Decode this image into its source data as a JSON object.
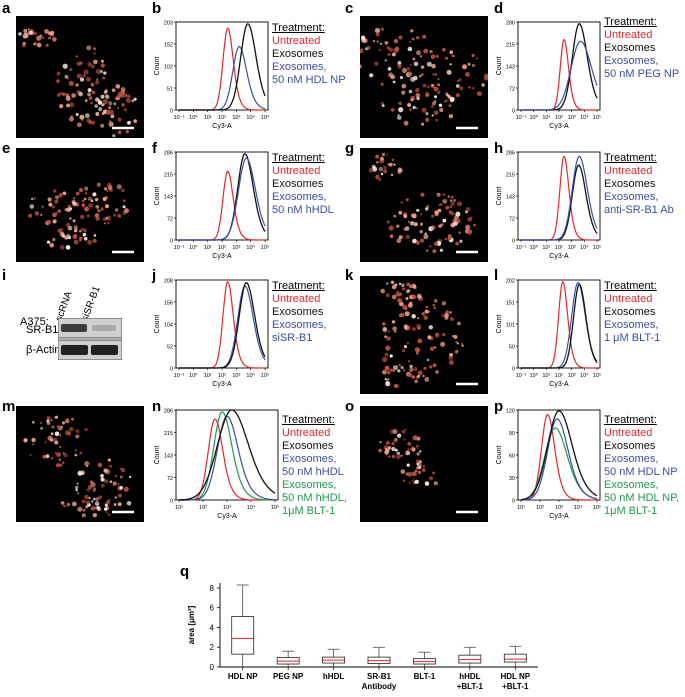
{
  "colors": {
    "red": "#e8262b",
    "black": "#111111",
    "blue": "#3b4fa0",
    "green": "#1f9a4c"
  },
  "panel_letters": [
    "a",
    "b",
    "c",
    "d",
    "e",
    "f",
    "g",
    "h",
    "i",
    "j",
    "k",
    "l",
    "m",
    "n",
    "o",
    "p",
    "q"
  ],
  "legend_header": "Treatment:",
  "flow_panels": {
    "b": {
      "yticks": [
        "203",
        "152",
        "102",
        "51",
        "0"
      ],
      "legend": [
        [
          "Untreated",
          "red"
        ],
        [
          "Exosomes",
          "black"
        ],
        [
          "Exosomes,",
          "blue"
        ],
        [
          "50 nM HDL NP",
          "blue"
        ]
      ],
      "xticks": [
        "10⁻¹",
        "10⁰",
        "10¹",
        "10²",
        "10³",
        "10⁴",
        "10⁵"
      ]
    },
    "d": {
      "yticks": [
        "286",
        "215",
        "143",
        "72",
        "0"
      ],
      "legend": [
        [
          "Untreated",
          "red"
        ],
        [
          "Exosomes",
          "black"
        ],
        [
          "Exosomes,",
          "blue"
        ],
        [
          "50 nM PEG NP",
          "blue"
        ]
      ],
      "xticks": [
        "10⁻¹",
        "10⁰",
        "10¹",
        "10²",
        "10³",
        "10⁴",
        "10⁵"
      ]
    },
    "f": {
      "yticks": [
        "286",
        "215",
        "143",
        "72",
        "0"
      ],
      "legend": [
        [
          "Untreated",
          "red"
        ],
        [
          "Exosomes",
          "black"
        ],
        [
          "Exosomes,",
          "blue"
        ],
        [
          "50 nM hHDL",
          "blue"
        ]
      ],
      "xticks": [
        "10⁻¹",
        "10⁰",
        "10¹",
        "10²",
        "10³",
        "10⁴",
        "10⁵"
      ]
    },
    "h": {
      "yticks": [
        "286",
        "215",
        "143",
        "72",
        "0"
      ],
      "legend": [
        [
          "Untreated",
          "red"
        ],
        [
          "Exosomes",
          "black"
        ],
        [
          "Exosomes,",
          "blue"
        ],
        [
          "anti-SR-B1 Ab",
          "blue"
        ]
      ],
      "xticks": [
        "10⁻¹",
        "10⁰",
        "10¹",
        "10²",
        "10³",
        "10⁴",
        "10⁵"
      ]
    },
    "j": {
      "yticks": [
        "208",
        "156",
        "104",
        "52",
        "0"
      ],
      "legend": [
        [
          "Untreated",
          "red"
        ],
        [
          "Exosomes",
          "black"
        ],
        [
          "Exosomes,",
          "blue"
        ],
        [
          "siSR-B1",
          "blue"
        ]
      ],
      "xticks": [
        "10⁻¹",
        "10⁰",
        "10¹",
        "10²",
        "10³",
        "10⁴",
        "10⁵"
      ]
    },
    "l": {
      "yticks": [
        "202",
        "151",
        "101",
        "50",
        "0"
      ],
      "legend": [
        [
          "Untreated",
          "red"
        ],
        [
          "Exosomes",
          "black"
        ],
        [
          "Exosomes,",
          "blue"
        ],
        [
          "1 μM BLT-1",
          "blue"
        ]
      ],
      "xticks": [
        "10⁻¹",
        "10⁰",
        "10¹",
        "10²",
        "10³",
        "10⁴",
        "10⁵"
      ]
    },
    "n": {
      "yticks": [
        "286",
        "215",
        "143",
        "72",
        "0"
      ],
      "legend": [
        [
          "Untreated",
          "red"
        ],
        [
          "Exosomes",
          "black"
        ],
        [
          "Exosomes,",
          "blue"
        ],
        [
          "50 nM hHDL",
          "blue"
        ],
        [
          "Exosomes,",
          "green"
        ],
        [
          "50 nM hHDL,",
          "green"
        ],
        [
          "1μM BLT-1",
          "green"
        ]
      ],
      "xticks": [
        "10¹",
        "10²",
        "10³",
        "10⁴",
        "10⁵"
      ]
    },
    "p": {
      "yticks": [
        "120",
        "90",
        "60",
        "30",
        "0"
      ],
      "legend": [
        [
          "Untreated",
          "red"
        ],
        [
          "Exosomes",
          "black"
        ],
        [
          "Exosomes,",
          "blue"
        ],
        [
          "50 nM HDL NP",
          "blue"
        ],
        [
          "Exosomes,",
          "green"
        ],
        [
          "50 nM HDL NP,",
          "green"
        ],
        [
          "1μM BLT-1",
          "green"
        ]
      ],
      "xticks": [
        "10¹",
        "10²",
        "10³",
        "10⁴",
        "10⁵"
      ]
    }
  },
  "axis_labels": {
    "flow_x": "Cy3-A",
    "flow_y": "Count"
  },
  "western_blot": {
    "cell_line": "A375:",
    "lanes": [
      "scRNA",
      "siSR-B1"
    ],
    "rows": [
      "SR-B1",
      "β-Actin"
    ]
  },
  "chart_data": {
    "type": "box",
    "title": "",
    "xlabel": "",
    "ylabel": "area [μm²]",
    "ylim": [
      0,
      8.5
    ],
    "yticks": [
      0,
      2,
      4,
      6,
      8
    ],
    "categories": [
      "HDL NP",
      "PEG NP",
      "hHDL",
      "SR-B1 Antibody",
      "BLT-1",
      "hHDL +BLT-1",
      "HDL NP +BLT-1"
    ],
    "category_lines": [
      [
        "HDL NP"
      ],
      [
        "PEG NP"
      ],
      [
        "hHDL"
      ],
      [
        "SR-B1",
        "Antibody"
      ],
      [
        "BLT-1"
      ],
      [
        "hHDL",
        "+BLT-1"
      ],
      [
        "HDL NP",
        "+BLT-1"
      ]
    ],
    "boxes": [
      {
        "whisker_low": 0.0,
        "q1": 1.3,
        "median": 2.9,
        "q3": 5.1,
        "whisker_high": 8.3
      },
      {
        "whisker_low": 0.0,
        "q1": 0.3,
        "median": 0.6,
        "q3": 0.95,
        "whisker_high": 1.6
      },
      {
        "whisker_low": 0.0,
        "q1": 0.4,
        "median": 0.7,
        "q3": 1.0,
        "whisker_high": 1.8
      },
      {
        "whisker_low": 0.0,
        "q1": 0.35,
        "median": 0.65,
        "q3": 1.0,
        "whisker_high": 2.0
      },
      {
        "whisker_low": 0.0,
        "q1": 0.3,
        "median": 0.55,
        "q3": 0.85,
        "whisker_high": 1.5
      },
      {
        "whisker_low": 0.0,
        "q1": 0.4,
        "median": 0.75,
        "q3": 1.2,
        "whisker_high": 2.0
      },
      {
        "whisker_low": 0.0,
        "q1": 0.5,
        "median": 0.8,
        "q3": 1.3,
        "whisker_high": 2.1
      }
    ],
    "median_color": "#e8262b"
  }
}
